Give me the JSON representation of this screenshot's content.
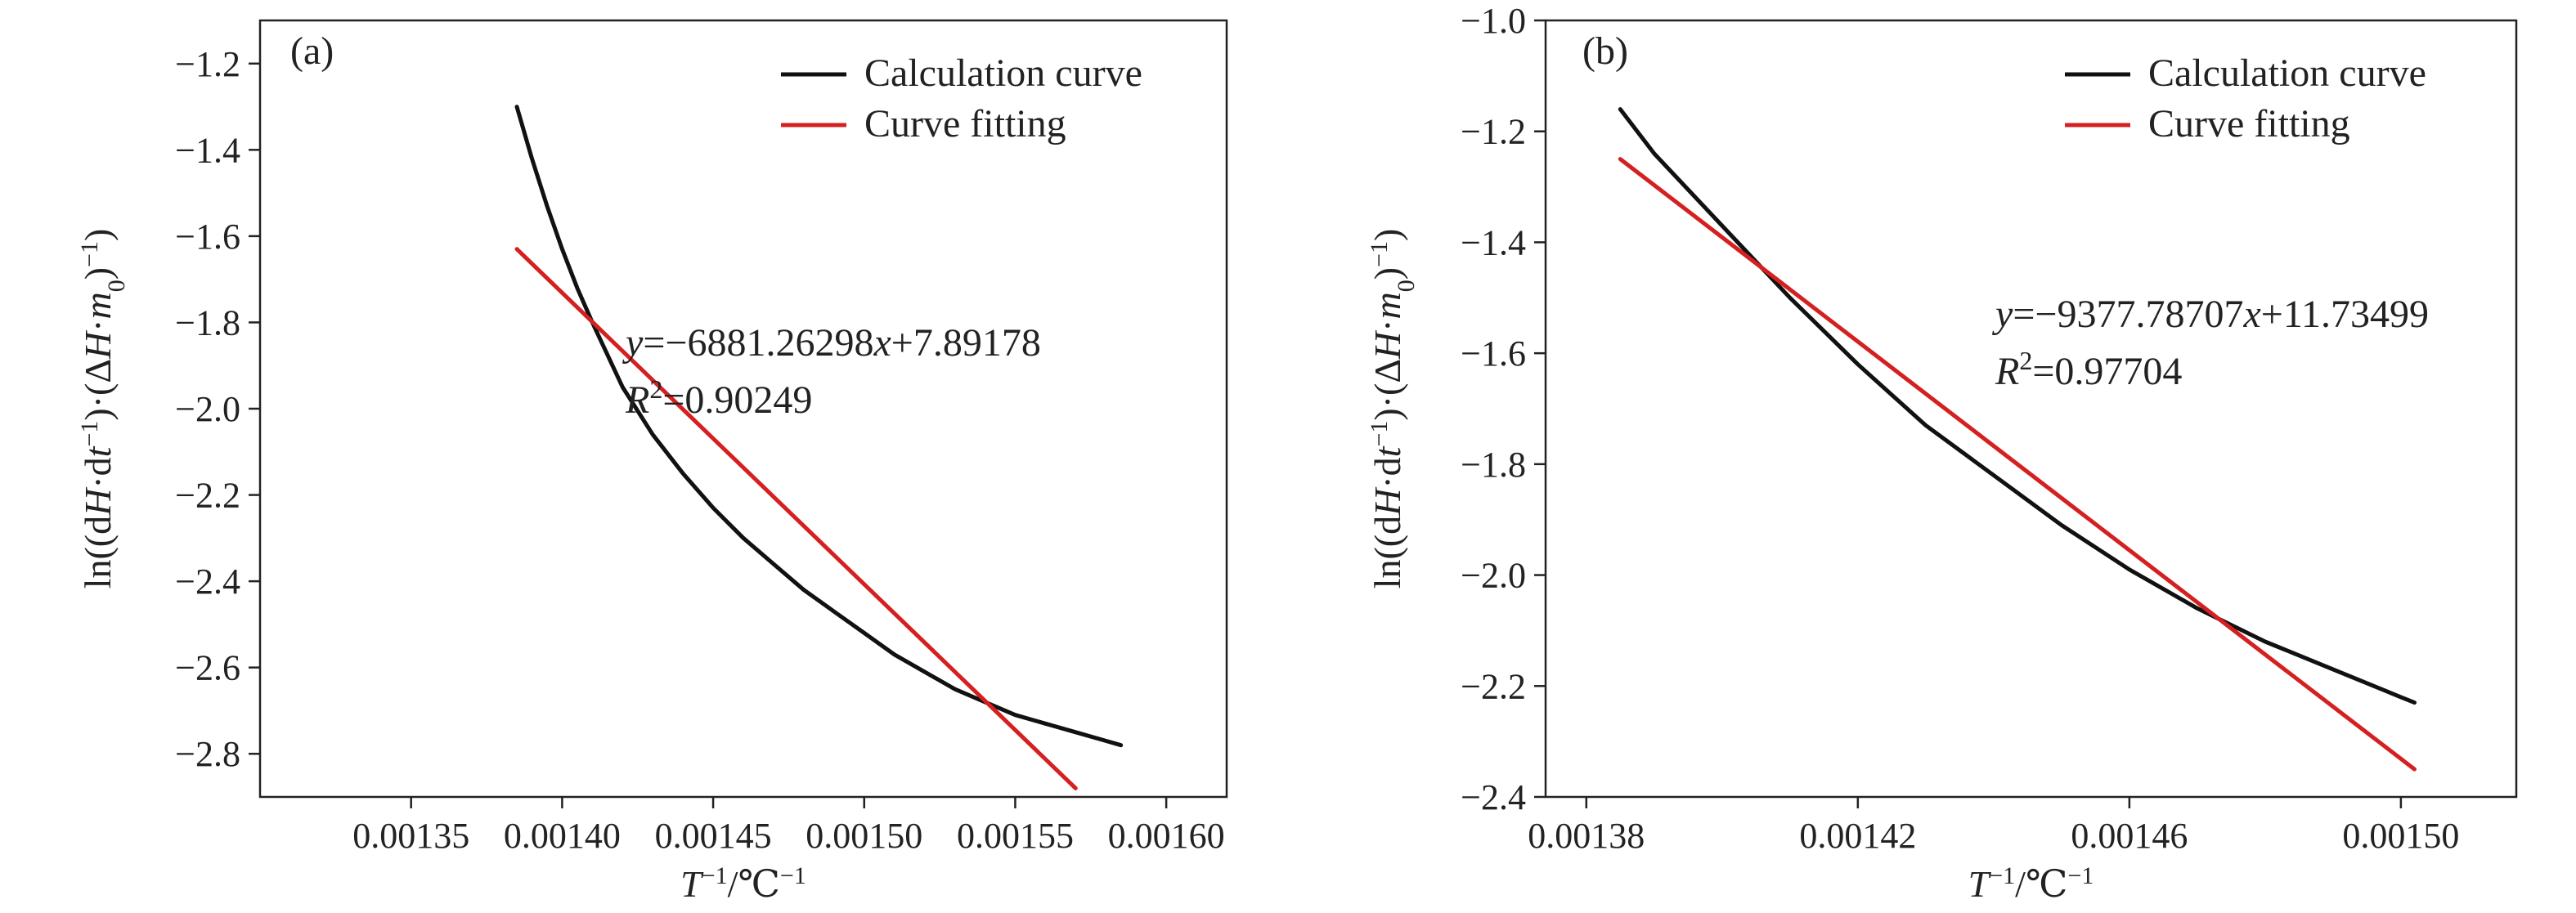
{
  "chart_data": [
    {
      "type": "line",
      "panel_label": "(a)",
      "xlabel_parts": [
        "T",
        "−1",
        "/℃",
        "−1"
      ],
      "ylabel_parts": [
        "ln((d",
        "H",
        "·d",
        "t",
        "−1",
        ")·(Δ",
        "H",
        "·",
        "m",
        "0",
        ")",
        "−1",
        ")"
      ],
      "xlim": [
        0.0013,
        0.00162
      ],
      "ylim": [
        -2.9,
        -1.1
      ],
      "xticks": [
        0.00135,
        0.0014,
        0.00145,
        0.0015,
        0.00155,
        0.0016
      ],
      "xtick_labels": [
        "0.00135",
        "0.00140",
        "0.00145",
        "0.00150",
        "0.00155",
        "0.00160"
      ],
      "yticks": [
        -1.2,
        -1.4,
        -1.6,
        -1.8,
        -2.0,
        -2.2,
        -2.4,
        -2.6,
        -2.8
      ],
      "ytick_labels": [
        "−1.2",
        "−1.4",
        "−1.6",
        "−1.8",
        "−2.0",
        "−2.2",
        "−2.4",
        "−2.6",
        "−2.8"
      ],
      "legend_position": "top-right",
      "series": [
        {
          "name": "Calculation curve",
          "color": "#111111",
          "x": [
            0.001385,
            0.00139,
            0.001395,
            0.0014,
            0.001405,
            0.00141,
            0.00142,
            0.00143,
            0.00144,
            0.00145,
            0.00146,
            0.00147,
            0.00148,
            0.00149,
            0.0015,
            0.00151,
            0.00152,
            0.00153,
            0.00154,
            0.00155,
            0.00156,
            0.00157,
            0.00158,
            0.001585
          ],
          "y": [
            -1.3,
            -1.42,
            -1.53,
            -1.63,
            -1.72,
            -1.8,
            -1.95,
            -2.06,
            -2.15,
            -2.23,
            -2.3,
            -2.36,
            -2.42,
            -2.47,
            -2.52,
            -2.57,
            -2.61,
            -2.65,
            -2.68,
            -2.71,
            -2.73,
            -2.75,
            -2.77,
            -2.78
          ]
        },
        {
          "name": "Curve fitting",
          "color": "#d42020",
          "x": [
            0.001385,
            0.00157
          ],
          "y": [
            -1.63,
            -2.88
          ]
        }
      ],
      "equation_parts": [
        "y",
        "=−6881.26298",
        "x",
        "+7.89178"
      ],
      "r2_parts": [
        "R",
        "2",
        "=0.90249"
      ]
    },
    {
      "type": "line",
      "panel_label": "(b)",
      "xlabel_parts": [
        "T",
        "−1",
        "/℃",
        "−1"
      ],
      "ylabel_parts": [
        "ln((d",
        "H",
        "·d",
        "t",
        "−1",
        ")·(Δ",
        "H",
        "·",
        "m",
        "0",
        ")",
        "−1",
        ")"
      ],
      "xlim": [
        0.001374,
        0.001517
      ],
      "ylim": [
        -2.4,
        -1.0
      ],
      "xticks": [
        0.00138,
        0.00142,
        0.00146,
        0.0015
      ],
      "xtick_labels": [
        "0.00138",
        "0.00142",
        "0.00146",
        "0.00150"
      ],
      "yticks": [
        -1.0,
        -1.2,
        -1.4,
        -1.6,
        -1.8,
        -2.0,
        -2.2,
        -2.4
      ],
      "ytick_labels": [
        "−1.0",
        "−1.2",
        "−1.4",
        "−1.6",
        "−1.8",
        "−2.0",
        "−2.2",
        "−2.4"
      ],
      "legend_position": "top-right",
      "series": [
        {
          "name": "Calculation curve",
          "color": "#111111",
          "x": [
            0.001385,
            0.00139,
            0.0014,
            0.00141,
            0.00142,
            0.00143,
            0.00144,
            0.00145,
            0.00146,
            0.00147,
            0.00148,
            0.00149,
            0.0015,
            0.001502
          ],
          "y": [
            -1.16,
            -1.24,
            -1.37,
            -1.5,
            -1.62,
            -1.73,
            -1.82,
            -1.91,
            -1.99,
            -2.06,
            -2.12,
            -2.17,
            -2.22,
            -2.23
          ]
        },
        {
          "name": "Curve fitting",
          "color": "#d42020",
          "x": [
            0.001385,
            0.001502
          ],
          "y": [
            -1.25,
            -2.35
          ]
        }
      ],
      "equation_parts": [
        "y",
        "=−9377.78707",
        "x",
        "+11.73499"
      ],
      "r2_parts": [
        "R",
        "2",
        "=0.97704"
      ]
    }
  ]
}
